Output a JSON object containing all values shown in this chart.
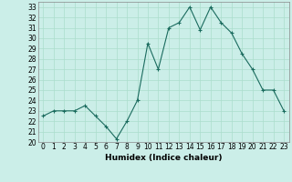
{
  "x": [
    0,
    1,
    2,
    3,
    4,
    5,
    6,
    7,
    8,
    9,
    10,
    11,
    12,
    13,
    14,
    15,
    16,
    17,
    18,
    19,
    20,
    21,
    22,
    23
  ],
  "y": [
    22.5,
    23.0,
    23.0,
    23.0,
    23.5,
    22.5,
    21.5,
    20.3,
    22.0,
    24.0,
    29.5,
    27.0,
    31.0,
    31.5,
    33.0,
    30.8,
    33.0,
    31.5,
    30.5,
    28.5,
    27.0,
    25.0,
    25.0,
    23.0
  ],
  "xlabel": "Humidex (Indice chaleur)",
  "ylim": [
    20,
    33.5
  ],
  "xlim": [
    -0.5,
    23.5
  ],
  "yticks": [
    20,
    21,
    22,
    23,
    24,
    25,
    26,
    27,
    28,
    29,
    30,
    31,
    32,
    33
  ],
  "xticks": [
    0,
    1,
    2,
    3,
    4,
    5,
    6,
    7,
    8,
    9,
    10,
    11,
    12,
    13,
    14,
    15,
    16,
    17,
    18,
    19,
    20,
    21,
    22,
    23
  ],
  "line_color": "#1a6b5e",
  "marker": "+",
  "bg_color": "#cbeee8",
  "grid_color": "#aaddcc",
  "axis_fontsize": 6.5,
  "tick_fontsize": 5.5
}
